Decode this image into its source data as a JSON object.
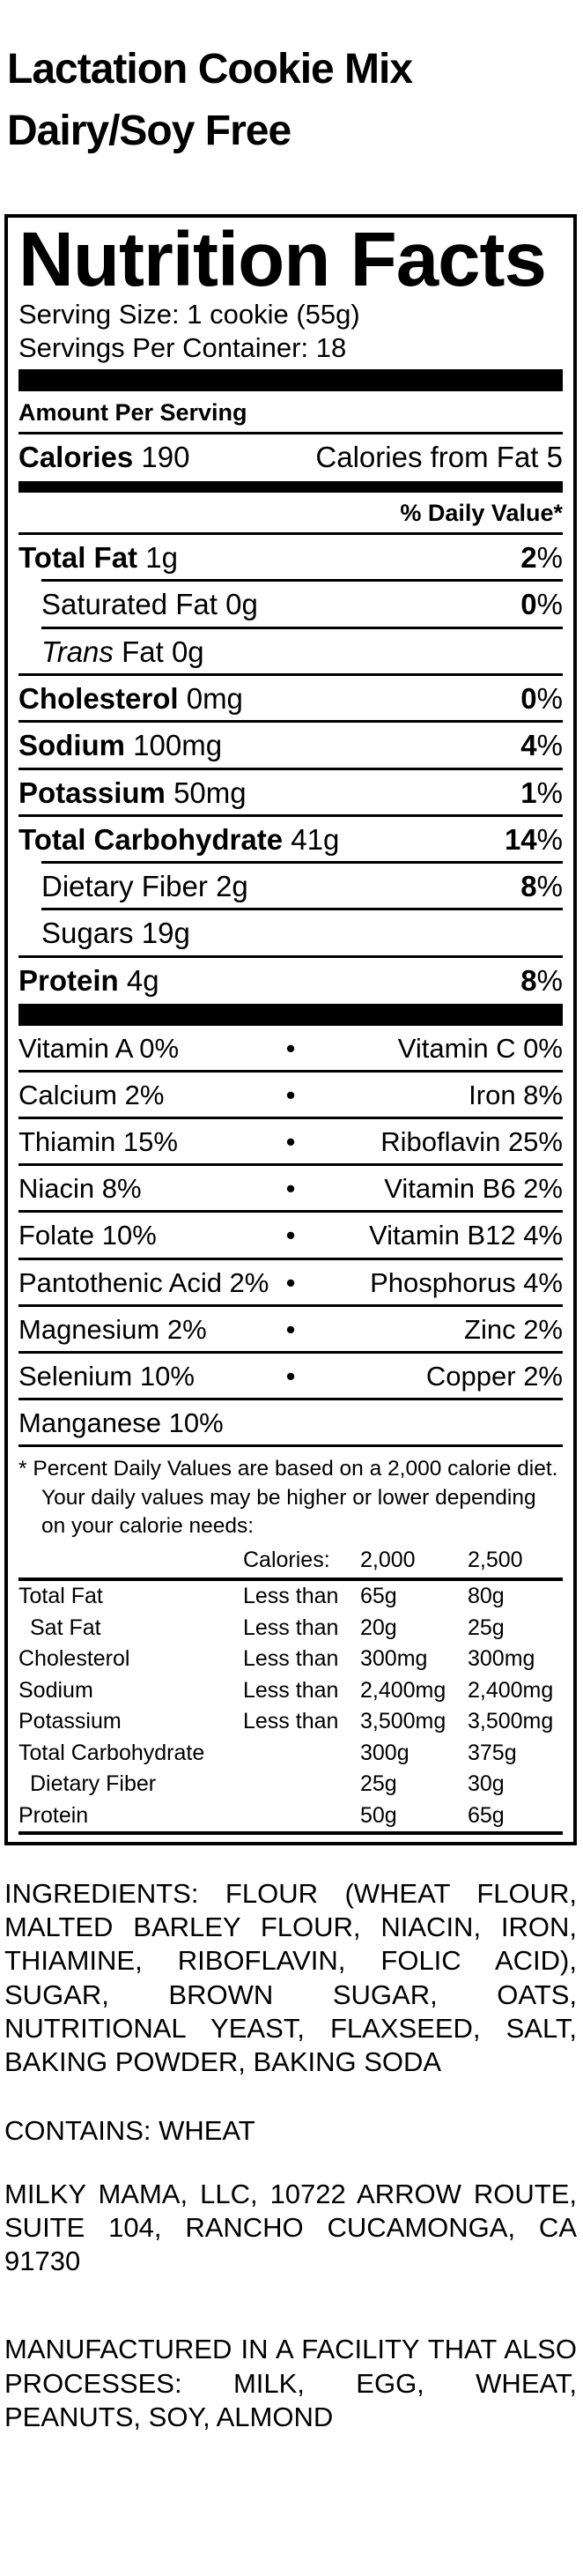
{
  "colors": {
    "ink": "#000000",
    "paper": "#ffffff"
  },
  "product": {
    "title_line1": "Lactation Cookie Mix",
    "title_line2": "Dairy/Soy Free"
  },
  "label": {
    "heading": "Nutrition Facts",
    "serving_size": "Serving Size: 1 cookie (55g)",
    "servings_per_container": "Servings Per Container: 18",
    "amount_per_serving": "Amount Per Serving",
    "calories": {
      "label": "Calories",
      "value": "190",
      "from_fat_label": "Calories from Fat",
      "from_fat_value": "5"
    },
    "daily_value_header": "% Daily Value*",
    "nutrients": [
      {
        "name_italic": "",
        "name": "Total Fat",
        "amount": "1g",
        "dv": "2",
        "dv_suffix": "%",
        "style": "main"
      },
      {
        "name_italic": "",
        "name": "Saturated Fat",
        "amount": "0g",
        "dv": "0",
        "dv_suffix": "%",
        "style": "sub"
      },
      {
        "name_italic": "Trans",
        "name": " Fat",
        "amount": "0g",
        "dv": "",
        "dv_suffix": "",
        "style": "sub"
      },
      {
        "name_italic": "",
        "name": "Cholesterol",
        "amount": "0mg",
        "dv": "0",
        "dv_suffix": "%",
        "style": "main"
      },
      {
        "name_italic": "",
        "name": "Sodium",
        "amount": "100mg",
        "dv": "4",
        "dv_suffix": "%",
        "style": "main"
      },
      {
        "name_italic": "",
        "name": "Potassium",
        "amount": "50mg",
        "dv": "1",
        "dv_suffix": "%",
        "style": "main"
      },
      {
        "name_italic": "",
        "name": "Total Carbohydrate",
        "amount": "41g",
        "dv": "14",
        "dv_suffix": "%",
        "style": "main"
      },
      {
        "name_italic": "",
        "name": "Dietary Fiber",
        "amount": "2g",
        "dv": "8",
        "dv_suffix": "%",
        "style": "sub"
      },
      {
        "name_italic": "",
        "name": "Sugars",
        "amount": "19g",
        "dv": "",
        "dv_suffix": "",
        "style": "sub"
      },
      {
        "name_italic": "",
        "name": "Protein",
        "amount": "4g",
        "dv": "8",
        "dv_suffix": "%",
        "style": "main"
      }
    ],
    "micronutrients": [
      {
        "left": "Vitamin A 0%",
        "bullet": "•",
        "right": "Vitamin C 0%"
      },
      {
        "left": "Calcium 2%",
        "bullet": "•",
        "right": "Iron 8%"
      },
      {
        "left": "Thiamin 15%",
        "bullet": "•",
        "right": "Riboflavin 25%"
      },
      {
        "left": "Niacin 8%",
        "bullet": "•",
        "right": "Vitamin B6 2%"
      },
      {
        "left": "Folate 10%",
        "bullet": "•",
        "right": "Vitamin B12 4%"
      },
      {
        "left": "Pantothenic Acid 2%",
        "bullet": "•",
        "right": "Phosphorus 4%"
      },
      {
        "left": "Magnesium 2%",
        "bullet": "•",
        "right": "Zinc 2%"
      },
      {
        "left": "Selenium 10%",
        "bullet": "•",
        "right": "Copper 2%"
      },
      {
        "left": "Manganese 10%",
        "bullet": "",
        "right": ""
      }
    ],
    "footnote": {
      "marker": "*",
      "text": "Percent Daily Values are based on a 2,000 calorie diet. Your daily values may be higher or lower depending on your calorie needs:"
    },
    "dv_table": {
      "header": {
        "c1": "",
        "c2": "Calories:",
        "c3": "2,000",
        "c4": "2,500"
      },
      "rows": [
        {
          "c1": "Total Fat",
          "c2": "Less than",
          "c3": "65g",
          "c4": "80g",
          "indent": false
        },
        {
          "c1": "Sat Fat",
          "c2": "Less than",
          "c3": "20g",
          "c4": "25g",
          "indent": true
        },
        {
          "c1": "Cholesterol",
          "c2": "Less than",
          "c3": "300mg",
          "c4": "300mg",
          "indent": false
        },
        {
          "c1": "Sodium",
          "c2": "Less than",
          "c3": "2,400mg",
          "c4": "2,400mg",
          "indent": false
        },
        {
          "c1": "Potassium",
          "c2": "Less than",
          "c3": "3,500mg",
          "c4": "3,500mg",
          "indent": false
        },
        {
          "c1": "Total Carbohydrate",
          "c2": "",
          "c3": "300g",
          "c4": "375g",
          "indent": false
        },
        {
          "c1": "Dietary Fiber",
          "c2": "",
          "c3": "25g",
          "c4": "30g",
          "indent": true
        },
        {
          "c1": "Protein",
          "c2": "",
          "c3": "50g",
          "c4": "65g",
          "indent": false
        }
      ]
    }
  },
  "paragraphs": {
    "ingredients": "INGREDIENTS: FLOUR (WHEAT FLOUR, MALTED BARLEY FLOUR, NIACIN, IRON, THIAMINE, RIBOFLAVIN, FOLIC ACID), SUGAR, BROWN SUGAR, OATS, NUTRITIONAL YEAST, FLAXSEED, SALT, BAKING POWDER, BAKING SODA",
    "contains": "CONTAINS: WHEAT",
    "address": "MILKY MAMA, LLC, 10722 ARROW ROUTE, SUITE 104, RANCHO CUCAMONGA, CA 91730",
    "facility": "MANUFACTURED IN A FACILITY THAT ALSO PROCESSES: MILK, EGG, WHEAT, PEANUTS, SOY, ALMOND"
  }
}
